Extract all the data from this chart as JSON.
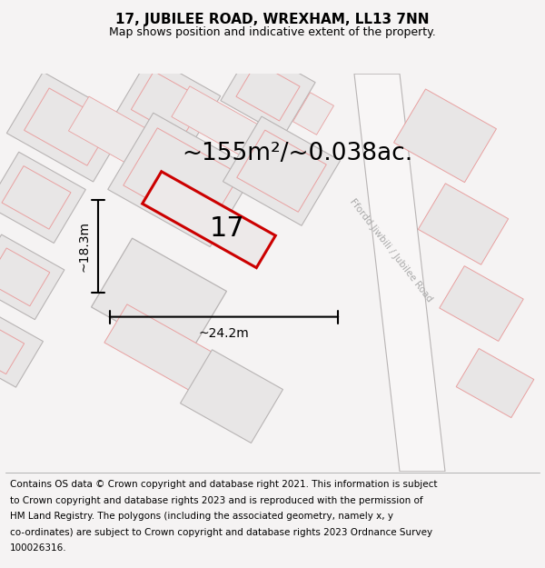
{
  "title": "17, JUBILEE ROAD, WREXHAM, LL13 7NN",
  "subtitle": "Map shows position and indicative extent of the property.",
  "area_text": "~155m²/~0.038ac.",
  "property_number": "17",
  "dim_width": "~24.2m",
  "dim_height": "~18.3m",
  "road_label": "Ffordd Jiwbili / Jubilee Road",
  "footer_lines": [
    "Contains OS data © Crown copyright and database right 2021. This information is subject",
    "to Crown copyright and database rights 2023 and is reproduced with the permission of",
    "HM Land Registry. The polygons (including the associated geometry, namely x, y",
    "co-ordinates) are subject to Crown copyright and database rights 2023 Ordnance Survey",
    "100026316."
  ],
  "map_bg": "#f5f3f3",
  "parcel_fill": "#e8e6e6",
  "parcel_edge_gray": "#b8b4b4",
  "parcel_edge_red": "#e8a0a0",
  "plot_fill": "#ede9e9",
  "plot_edge": "#cc0000",
  "road_fill": "#f0eeee",
  "road_edge": "#c8c4c4",
  "title_fontsize": 11,
  "subtitle_fontsize": 9,
  "area_fontsize": 19,
  "number_fontsize": 22,
  "footer_fontsize": 7.5,
  "dim_fontsize": 10
}
